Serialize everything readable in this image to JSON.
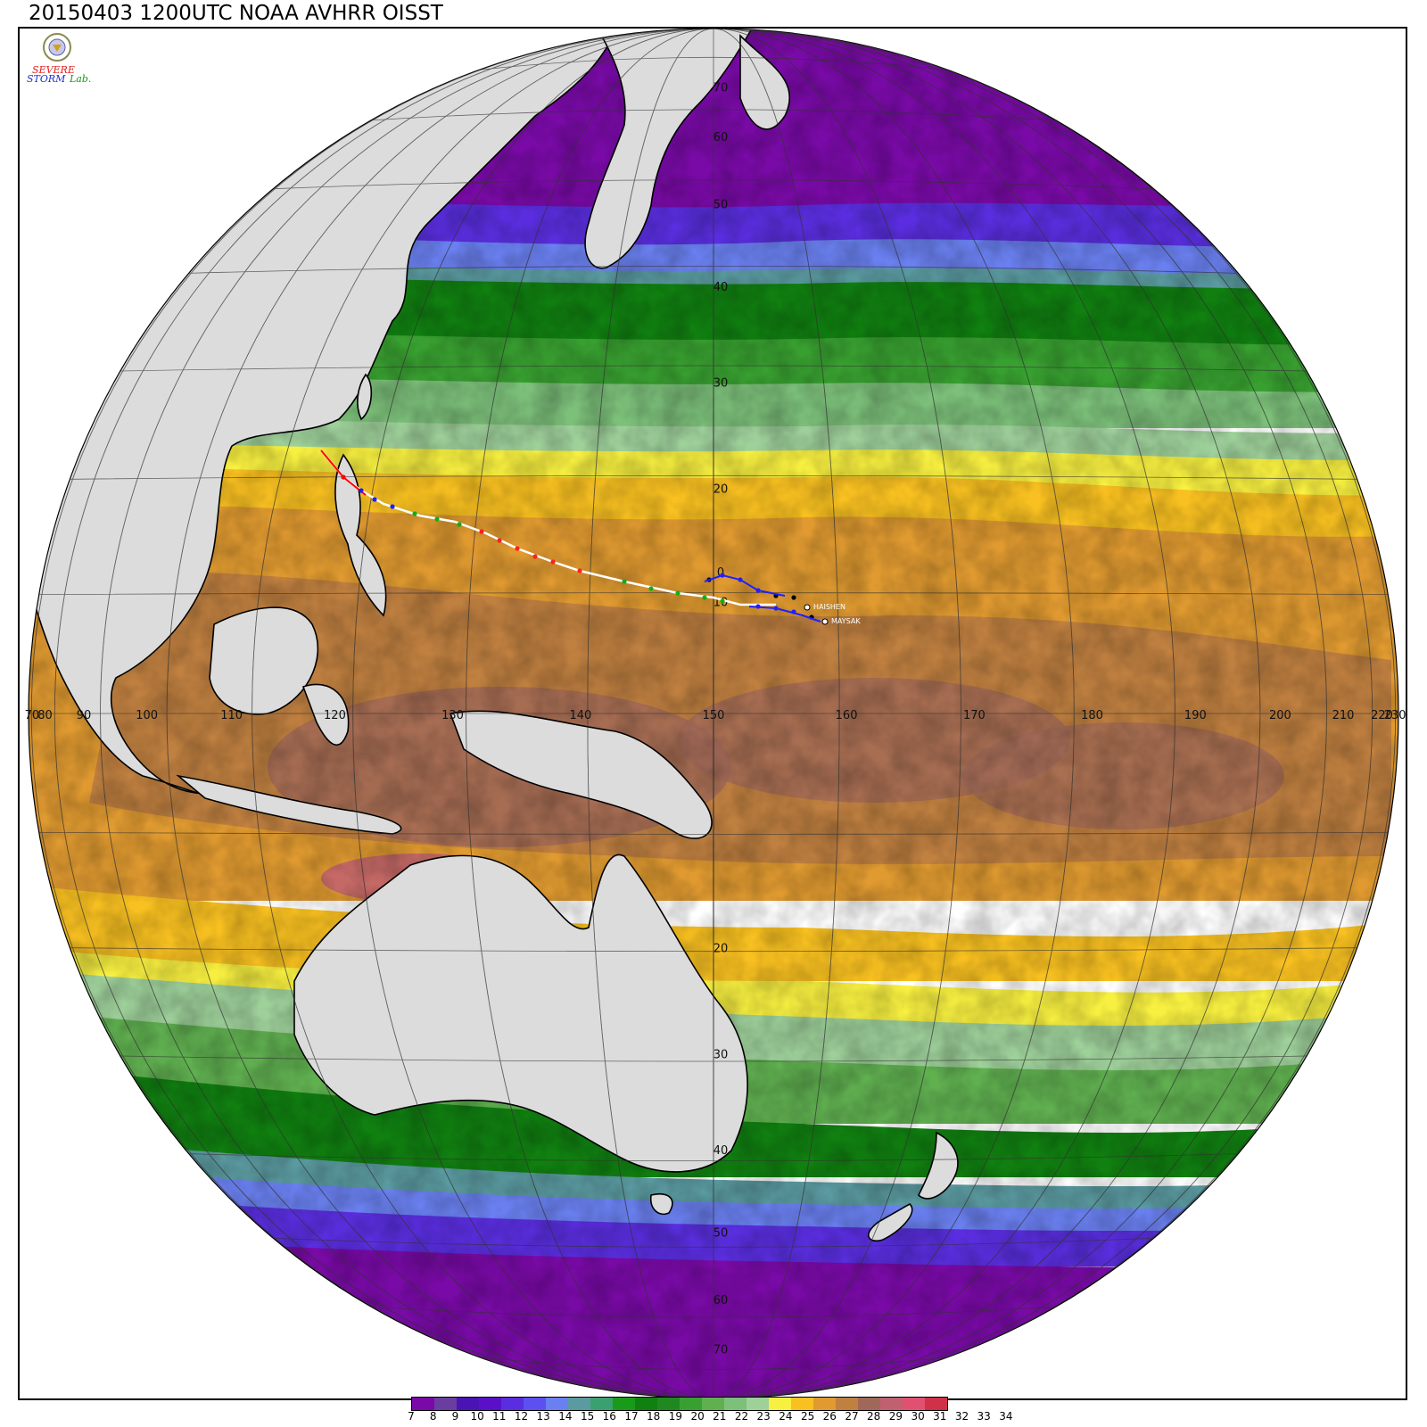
{
  "title": "20150403 1200UTC NOAA AVHRR OISST",
  "logo": {
    "line1": "SEVERE",
    "line2": "STORM",
    "line3": "Lab."
  },
  "legend": {
    "colors": [
      "#7a0aa8",
      "#6a3ea0",
      "#4a14b4",
      "#5a10c8",
      "#5a2ee0",
      "#5c50f0",
      "#6a80f0",
      "#5a9aa0",
      "#3aa070",
      "#1a9a1a",
      "#108010",
      "#208820",
      "#38a030",
      "#60b050",
      "#7cc07a",
      "#9ed09a",
      "#f8f040",
      "#f8c020",
      "#e09a30",
      "#c08040",
      "#a06858",
      "#c06070",
      "#e05070",
      "#d03048"
    ],
    "labels": [
      "7",
      "8",
      "9",
      "10",
      "11",
      "12",
      "13",
      "14",
      "15",
      "16",
      "17",
      "18",
      "19",
      "20",
      "21",
      "22",
      "23",
      "24",
      "25",
      "26",
      "27",
      "28",
      "29",
      "30",
      "31",
      "32",
      "33",
      "34"
    ]
  },
  "grid": {
    "lon_labels": [
      "70",
      "80",
      "90",
      "100",
      "110",
      "120",
      "130",
      "140",
      "150",
      "160",
      "170",
      "180",
      "190",
      "200",
      "210",
      "220",
      "230"
    ],
    "lat_labels_north": [
      "70",
      "60",
      "50",
      "40",
      "30",
      "20",
      "10"
    ],
    "lat_labels_south": [
      "20",
      "30",
      "40",
      "50",
      "60",
      "70"
    ],
    "equator_label": "0"
  },
  "storms": {
    "a_name": "HAISHEN",
    "b_name": "MAYSAK"
  }
}
